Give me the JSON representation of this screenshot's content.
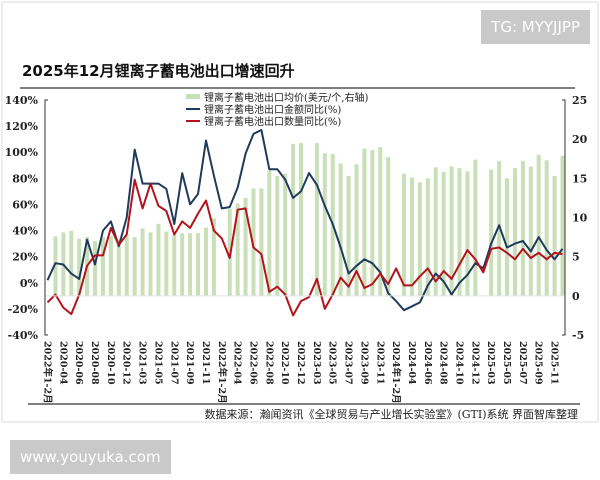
{
  "watermarks": {
    "top": "TG: MYYJJPP",
    "bottom": "www.youyuka.com"
  },
  "source": "数据来源：瀚闻资讯《全球贸易与产业增长实验室》(GTI)系统  界面智库整理",
  "colors": {
    "bar": "#c9dfb8",
    "amount_line": "#1f3b5c",
    "quantity_line": "#b3141c"
  },
  "chart_data": {
    "type": "bar+line",
    "title": "2025年12月锂离子蓄电池出口增速回升",
    "legend_placement": "top-center",
    "grid": false,
    "y_left": {
      "ticks": [
        "140%",
        "120%",
        "100%",
        "80%",
        "60%",
        "40%",
        "20%",
        "0%",
        "-20%",
        "-40%"
      ],
      "range": [
        -40,
        140
      ]
    },
    "y_right": {
      "ticks": [
        "25",
        "20",
        "15",
        "10",
        "5",
        "0",
        "-5"
      ],
      "range": [
        -5,
        25
      ]
    },
    "x_tick_labels": [
      "2022年1-2月",
      "2020-04",
      "2020-06",
      "2020-08",
      "2020-10",
      "2020-12",
      "2021-03",
      "2021-05",
      "2021-07",
      "2021-09",
      "2021-11",
      "2022年1-2月",
      "2022-04",
      "2022-06",
      "2022-08",
      "2022-10",
      "2022-12",
      "2023-03",
      "2023-05",
      "2023-07",
      "2023-09",
      "2023-11",
      "2024年1-2月",
      "2024-04",
      "2024-06",
      "2024-08",
      "2024-10",
      "2024-12",
      "2025-03",
      "2025-05",
      "2025-07",
      "2025-09",
      "2025-11"
    ],
    "series": [
      {
        "name": "锂离子蓄电池出口均价(美元/个,右轴)",
        "type": "bar",
        "axis": "right",
        "values": [
          null,
          7.6,
          8.1,
          8.3,
          7.3,
          7.5,
          7.0,
          7.5,
          7.6,
          7.2,
          7.8,
          7.5,
          8.6,
          8.1,
          9.2,
          8.2,
          7.8,
          8.0,
          8.0,
          8.0,
          8.7,
          9.9,
          null,
          11.1,
          11.8,
          12.5,
          13.7,
          13.7,
          16.0,
          15.3,
          15.6,
          19.4,
          19.5,
          null,
          19.5,
          18.2,
          18.1,
          16.9,
          15.3,
          16.8,
          18.8,
          18.6,
          19.0,
          17.7,
          null,
          15.6,
          15.1,
          14.5,
          15.0,
          16.4,
          15.8,
          16.5,
          16.3,
          15.9,
          17.4,
          null,
          16.1,
          17.2,
          15.0,
          16.3,
          17.2,
          16.5,
          18.0,
          17.3,
          15.3,
          17.9
        ]
      },
      {
        "name": "锂离子蓄电池出口金额同比(%)",
        "type": "line",
        "axis": "left",
        "values": [
          2,
          15,
          14,
          7,
          3,
          33,
          14,
          40,
          47,
          28,
          50,
          102,
          76,
          76,
          76,
          72,
          45,
          84,
          60,
          68,
          109,
          82,
          57,
          58,
          73,
          99,
          114,
          117,
          87,
          87,
          79,
          65,
          70,
          84,
          75,
          59,
          45,
          27,
          7,
          13,
          18,
          15,
          8,
          -8,
          -14,
          -21,
          -18,
          -15,
          -2,
          7,
          1,
          -9,
          0,
          6,
          15,
          11,
          30,
          44,
          27,
          30,
          32,
          24,
          35,
          25,
          18,
          26
        ]
      },
      {
        "name": "锂离子蓄电池出口数量同比(%)",
        "type": "line",
        "axis": "left",
        "values": [
          -15,
          -9,
          -19,
          -24,
          -9,
          13,
          21,
          21,
          42,
          29,
          37,
          79,
          57,
          76,
          59,
          55,
          37,
          47,
          42,
          53,
          63,
          40,
          34,
          19,
          56,
          57,
          27,
          22,
          -7,
          -3,
          -9,
          -25,
          -14,
          -11,
          3,
          -20,
          -9,
          4,
          -3,
          9,
          -4,
          -1,
          7,
          -1,
          11,
          -2,
          -2,
          5,
          11,
          1,
          9,
          3,
          14,
          25,
          18,
          8,
          26,
          27,
          23,
          18,
          26,
          19,
          23,
          18,
          23,
          22
        ]
      }
    ]
  }
}
